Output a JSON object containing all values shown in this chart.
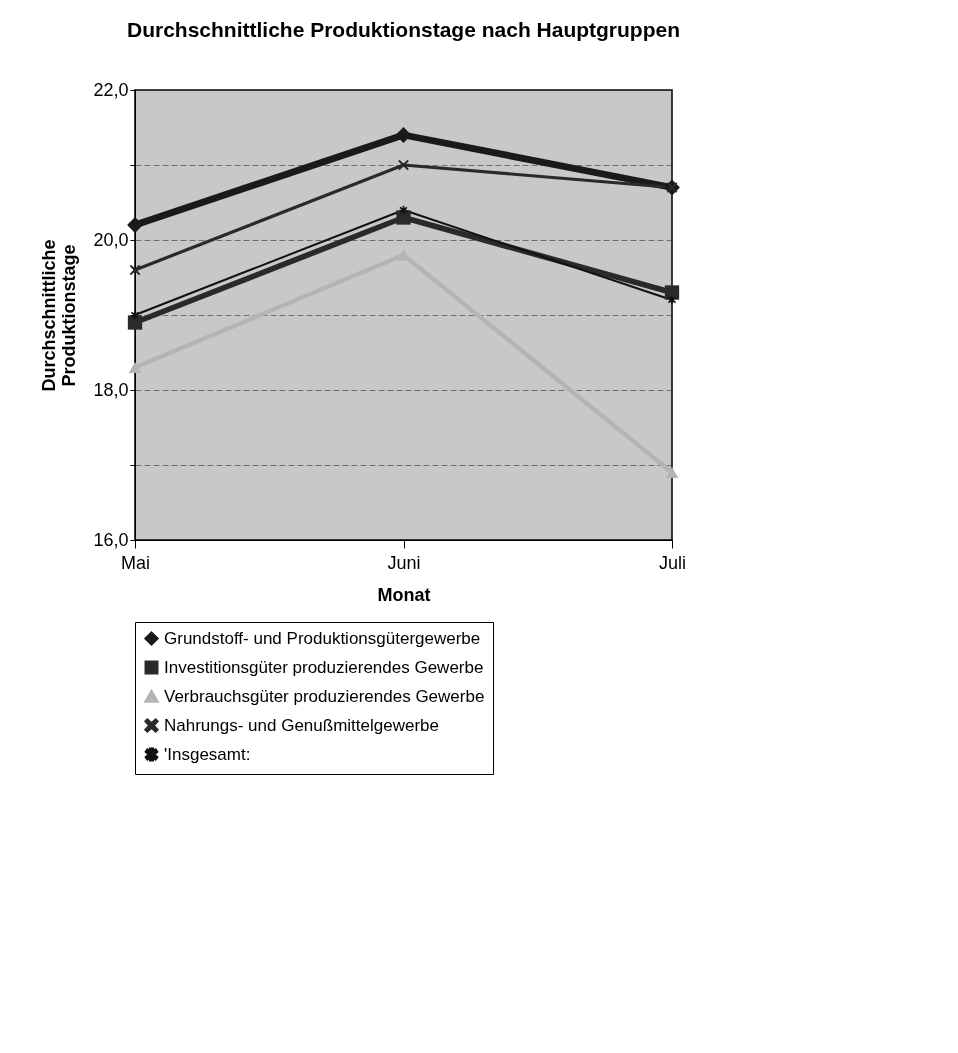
{
  "chart_data": {
    "type": "line",
    "title": "Durchschnittliche Produktionstage nach Hauptgruppen",
    "xlabel": "Monat",
    "ylabel": "Durchschnittliche Produktionstage",
    "categories": [
      "Mai",
      "Juni",
      "Juli"
    ],
    "series": [
      {
        "name": "Grundstoff- und Produktionsgütergewerbe",
        "color": "#1a1a1a",
        "marker": "diamond",
        "values": [
          20.2,
          21.4,
          20.7
        ]
      },
      {
        "name": "Investitionsgüter produzierendes Gewerbe",
        "color": "#2a2a2a",
        "marker": "square",
        "values": [
          18.9,
          20.3,
          19.3
        ]
      },
      {
        "name": "Verbrauchsgüter produzierendes Gewerbe",
        "color": "#b4b4b4",
        "marker": "triangle",
        "values": [
          18.3,
          19.8,
          16.9
        ]
      },
      {
        "name": "Nahrungs- und Genußmittelgewerbe",
        "color": "#2a2a2a",
        "marker": "cross",
        "values": [
          19.6,
          21.0,
          20.7
        ]
      },
      {
        "name": "'Insgesamt:",
        "color": "#111111",
        "marker": "star",
        "values": [
          19.0,
          20.4,
          19.2
        ]
      }
    ],
    "ylim": [
      16,
      22
    ],
    "yticks": [
      {
        "value": 16,
        "label": "16,0"
      },
      {
        "value": 17,
        "label": null
      },
      {
        "value": 18,
        "label": "18,0"
      },
      {
        "value": 19,
        "label": null
      },
      {
        "value": 20,
        "label": "20,0"
      },
      {
        "value": 21,
        "label": null
      },
      {
        "value": 22,
        "label": "22,0"
      }
    ],
    "grid": true,
    "legend": "bottom"
  }
}
